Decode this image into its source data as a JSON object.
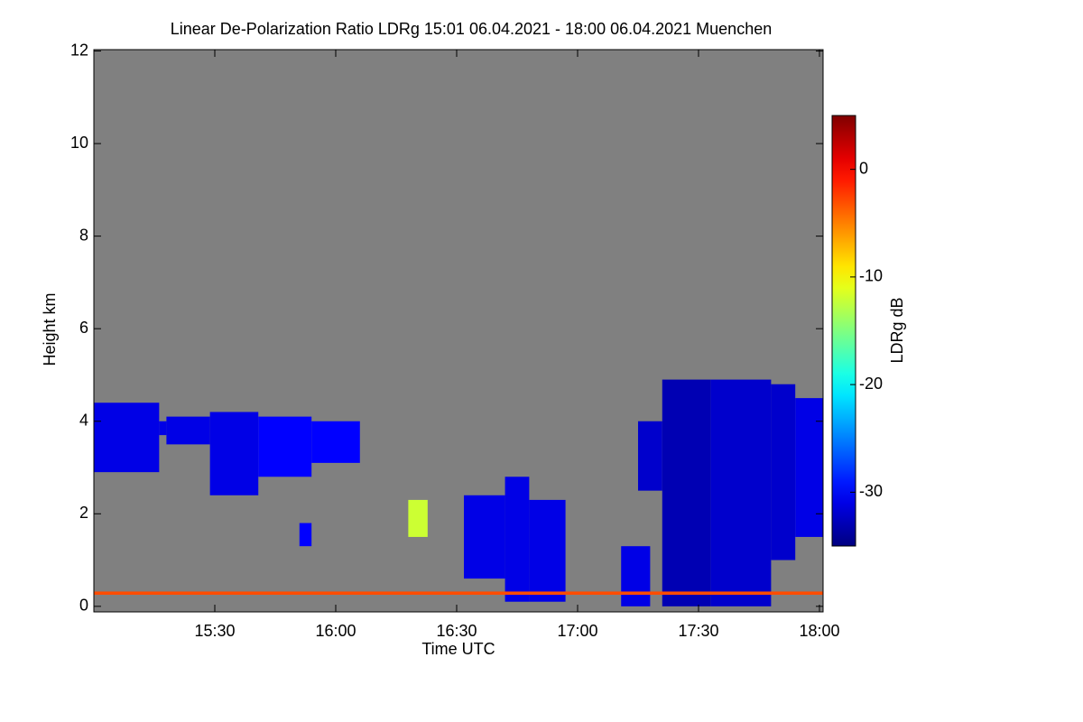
{
  "chart_data": {
    "type": "heatmap",
    "title": "Linear De-Polarization Ratio LDRg   15:01 06.04.2021 - 18:00 06.04.2021 Muenchen",
    "x_label": "Time UTC",
    "y_label": "Height km",
    "colorbar_label": "LDRg dB",
    "colormap": "jet",
    "background": "#808080",
    "xlim": [
      15.0,
      18.015
    ],
    "xticks": [
      {
        "value": 15.5,
        "label": "15:30"
      },
      {
        "value": 16.0,
        "label": "16:00"
      },
      {
        "value": 16.5,
        "label": "16:30"
      },
      {
        "value": 17.0,
        "label": "17:00"
      },
      {
        "value": 17.5,
        "label": "17:30"
      },
      {
        "value": 18.0,
        "label": "18:00"
      }
    ],
    "ylim": [
      -0.12,
      12.03
    ],
    "yticks": [
      0,
      2,
      4,
      6,
      8,
      10,
      12
    ],
    "clim": [
      -35,
      5
    ],
    "cticks": [
      0,
      -10,
      -20,
      -30
    ],
    "cells": [
      {
        "x": [
          15.0,
          15.27
        ],
        "y": [
          2.9,
          4.4
        ],
        "value": -31
      },
      {
        "x": [
          15.27,
          15.3
        ],
        "y": [
          3.7,
          4.0
        ],
        "value": -31
      },
      {
        "x": [
          15.3,
          15.48
        ],
        "y": [
          3.5,
          4.1
        ],
        "value": -31
      },
      {
        "x": [
          15.48,
          15.68
        ],
        "y": [
          2.4,
          4.2
        ],
        "value": -31
      },
      {
        "x": [
          15.68,
          15.9
        ],
        "y": [
          2.8,
          4.1
        ],
        "value": -30
      },
      {
        "x": [
          15.9,
          16.1
        ],
        "y": [
          3.1,
          4.0
        ],
        "value": -30
      },
      {
        "x": [
          15.85,
          15.9
        ],
        "y": [
          1.3,
          1.8
        ],
        "value": -30
      },
      {
        "x": [
          16.3,
          16.38
        ],
        "y": [
          1.5,
          2.3
        ],
        "value": -12
      },
      {
        "x": [
          16.53,
          16.7
        ],
        "y": [
          0.6,
          2.4
        ],
        "value": -31
      },
      {
        "x": [
          16.7,
          16.8
        ],
        "y": [
          0.1,
          2.8
        ],
        "value": -31
      },
      {
        "x": [
          16.8,
          16.95
        ],
        "y": [
          0.1,
          2.3
        ],
        "value": -31
      },
      {
        "x": [
          17.18,
          17.3
        ],
        "y": [
          0.0,
          1.3
        ],
        "value": -31
      },
      {
        "x": [
          17.25,
          17.35
        ],
        "y": [
          2.5,
          4.0
        ],
        "value": -32
      },
      {
        "x": [
          17.35,
          17.55
        ],
        "y": [
          0.0,
          4.9
        ],
        "value": -33
      },
      {
        "x": [
          17.55,
          17.8
        ],
        "y": [
          0.0,
          4.9
        ],
        "value": -32
      },
      {
        "x": [
          17.8,
          17.9
        ],
        "y": [
          1.0,
          4.8
        ],
        "value": -32
      },
      {
        "x": [
          17.9,
          18.015
        ],
        "y": [
          1.5,
          4.5
        ],
        "value": -31
      },
      {
        "x": [
          15.0,
          18.015
        ],
        "y": [
          0.25,
          0.32
        ],
        "value": -3
      }
    ]
  }
}
